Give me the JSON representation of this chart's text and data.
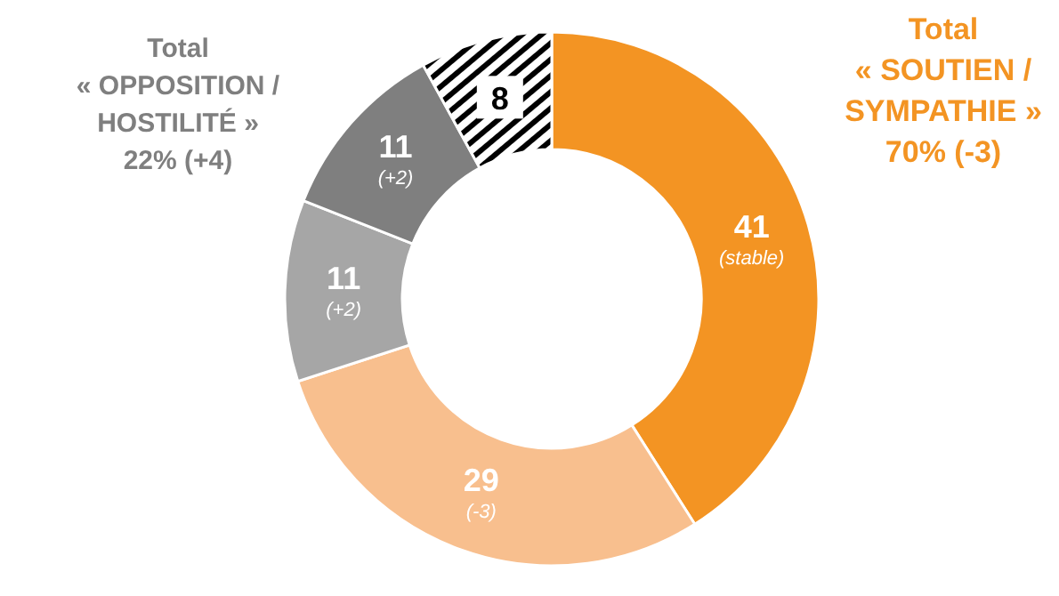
{
  "chart_data": {
    "type": "donut",
    "categories": [
      null,
      null,
      null,
      null,
      null
    ],
    "values": [
      41,
      29,
      11,
      11,
      8
    ],
    "colors": [
      "#f39423",
      "#f8bf8e",
      "#a6a6a6",
      "#7f7f7f",
      "#ffffff"
    ],
    "data_labels": true,
    "annotations": [
      "Total\n« SOUTIEN /\nSYMPATHIE »\n70% (-3)",
      "Total\n« OPPOSITION /\nHOSTILITÉ »\n22% (+4)",
      "(stable)",
      "(-3)",
      "(+2)",
      "(+2)"
    ]
  }
}
